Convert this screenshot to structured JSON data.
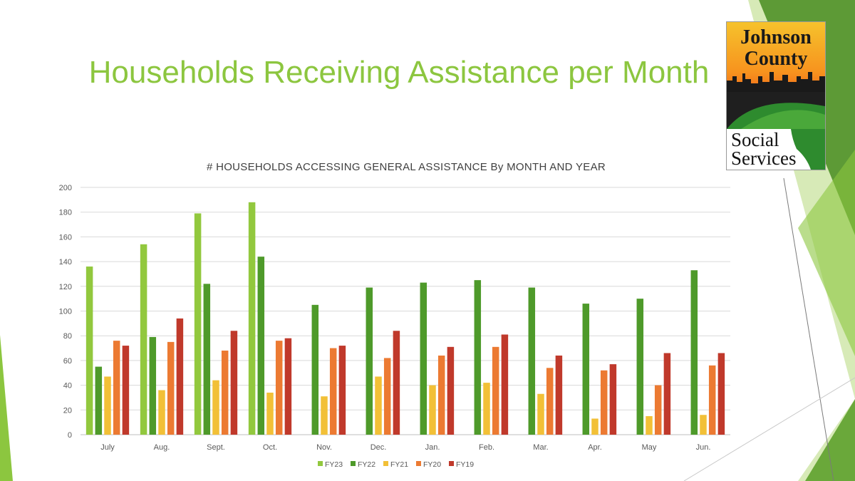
{
  "slide": {
    "title": "Households Receiving Assistance per Month"
  },
  "logo": {
    "line1": "Johnson",
    "line2": "County",
    "line3": "Social",
    "line4": "Services"
  },
  "colors": {
    "title": "#8cc63f",
    "FY23": "#92c83e",
    "FY22": "#4e9a2a",
    "FY21": "#f2c037",
    "FY20": "#ec7a32",
    "FY19": "#c0392b",
    "grid": "#d9d9d9",
    "deco_light": "#b6d97c",
    "deco_dark": "#5d9a36"
  },
  "chart_data": {
    "type": "bar",
    "title": "# HOUSEHOLDS ACCESSING GENERAL ASSISTANCE By MONTH AND YEAR",
    "categories": [
      "July",
      "Aug.",
      "Sept.",
      "Oct.",
      "Nov.",
      "Dec.",
      "Jan.",
      "Feb.",
      "Mar.",
      "Apr.",
      "May",
      "Jun."
    ],
    "ylim": [
      0,
      200
    ],
    "yticks": [
      0,
      20,
      40,
      60,
      80,
      100,
      120,
      140,
      160,
      180,
      200
    ],
    "grid": true,
    "legend_position": "bottom",
    "series": [
      {
        "name": "FY23",
        "values": [
          136,
          154,
          179,
          188,
          null,
          null,
          null,
          null,
          null,
          null,
          null,
          null
        ]
      },
      {
        "name": "FY22",
        "values": [
          55,
          79,
          122,
          144,
          105,
          119,
          123,
          125,
          119,
          106,
          110,
          133
        ]
      },
      {
        "name": "FY21",
        "values": [
          47,
          36,
          44,
          34,
          31,
          47,
          40,
          42,
          33,
          13,
          15,
          16
        ]
      },
      {
        "name": "FY20",
        "values": [
          76,
          75,
          68,
          76,
          70,
          62,
          64,
          71,
          54,
          52,
          40,
          56
        ]
      },
      {
        "name": "FY19",
        "values": [
          72,
          94,
          84,
          78,
          72,
          84,
          71,
          81,
          64,
          57,
          66,
          66
        ]
      }
    ]
  }
}
